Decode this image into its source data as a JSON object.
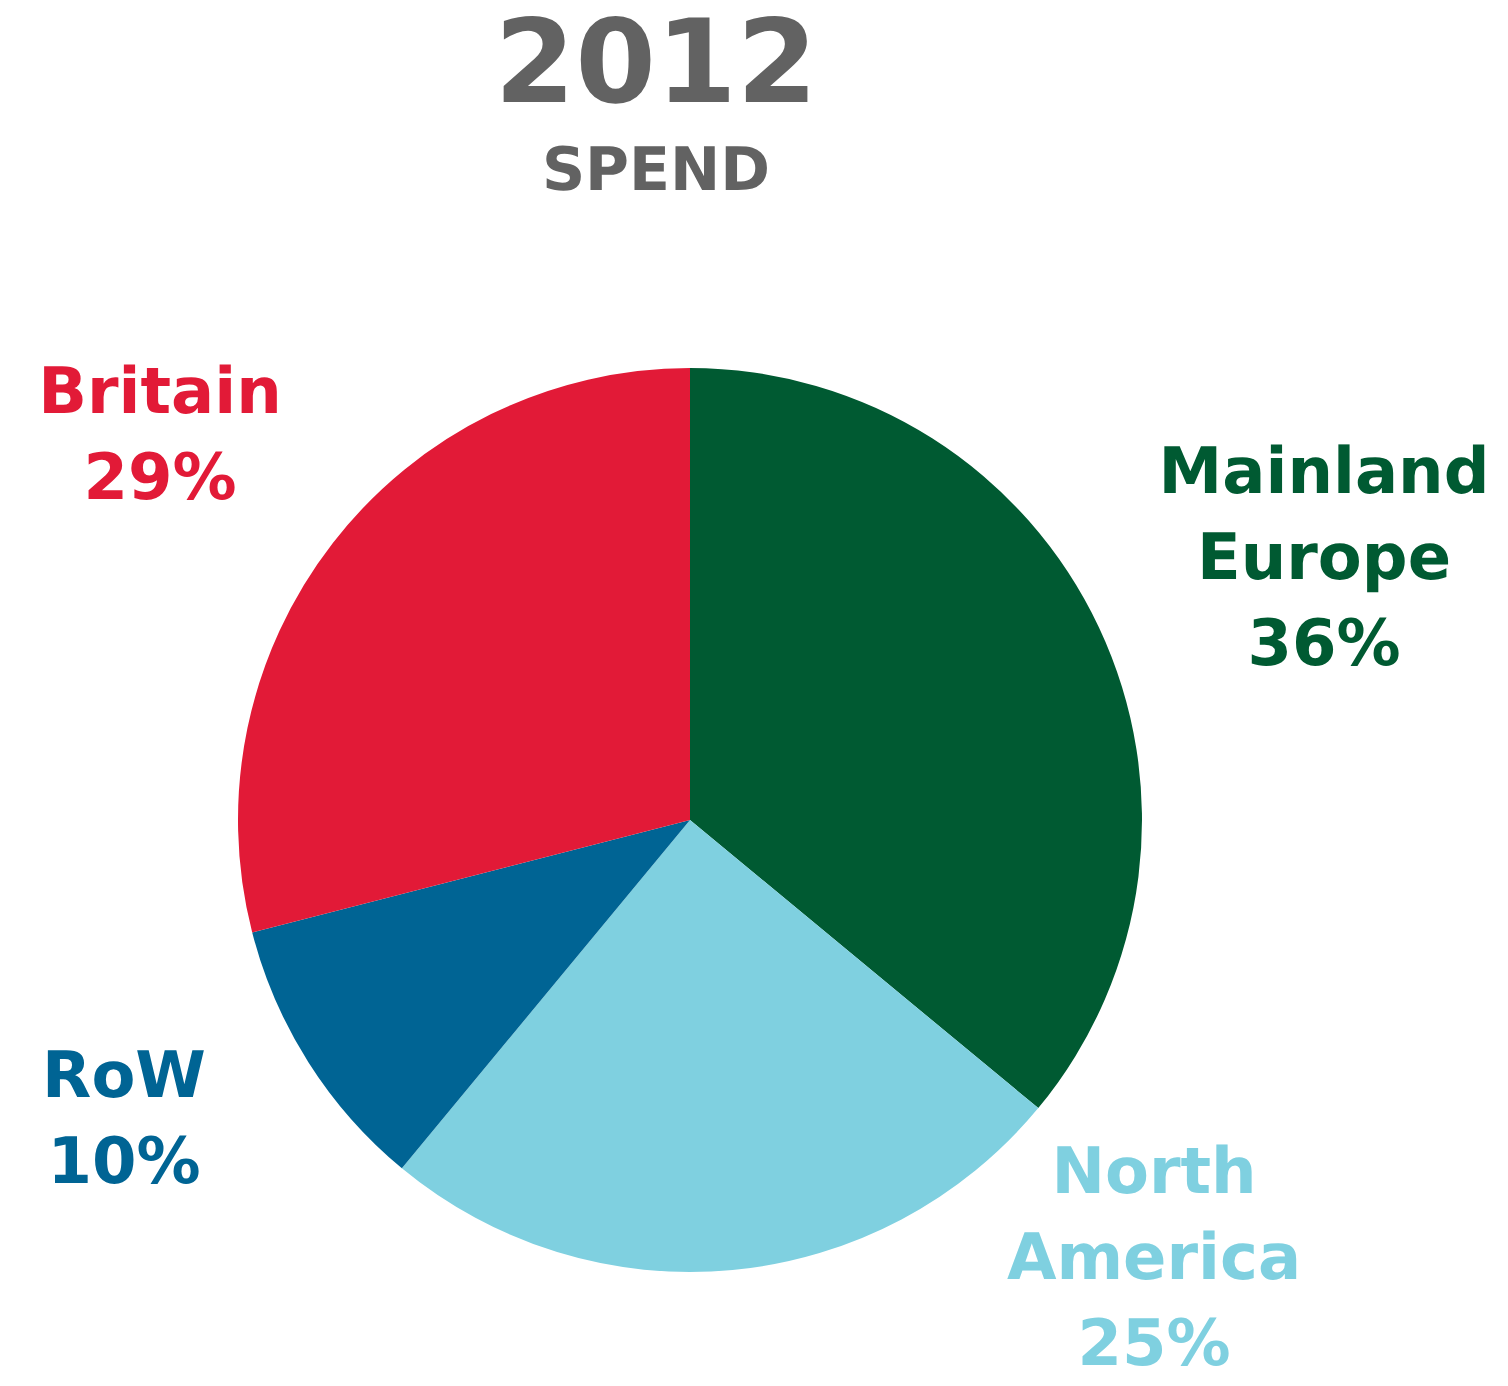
{
  "chart_data": {
    "type": "pie",
    "title": "2012",
    "subtitle": "SPEND",
    "categories": [
      "Mainland Europe",
      "North America",
      "RoW",
      "Britain"
    ],
    "values": [
      36,
      25,
      10,
      29
    ],
    "value_labels": [
      "36%",
      "25%",
      "10%",
      "29%"
    ],
    "colors": [
      "#005a32",
      "#7fd0e0",
      "#006494",
      "#e21a37"
    ],
    "legend": false
  }
}
